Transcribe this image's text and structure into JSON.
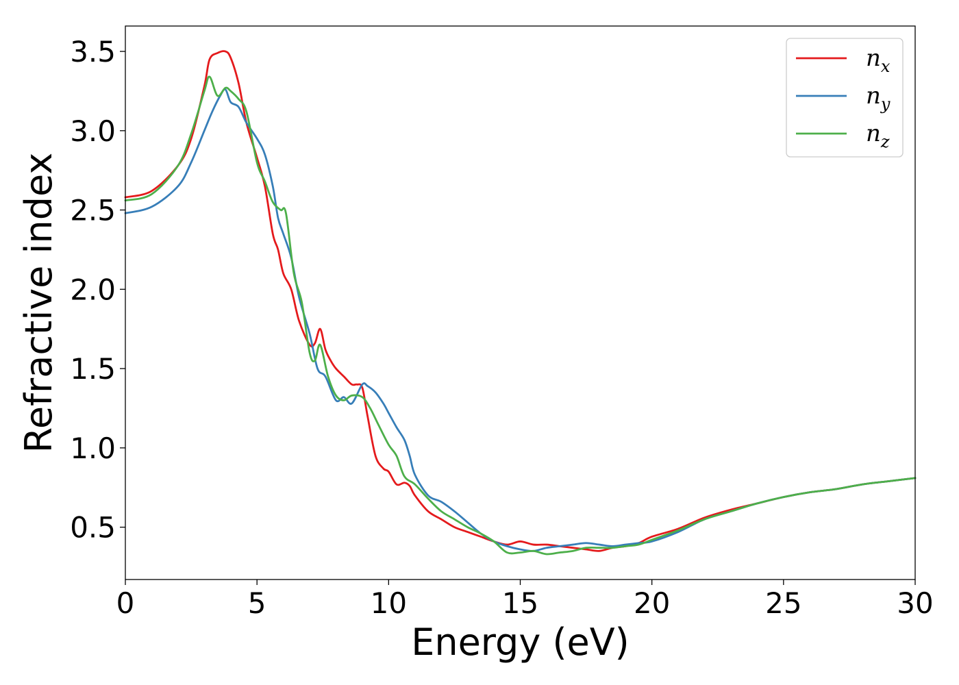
{
  "chart_data": {
    "type": "line",
    "xlabel": "Energy (eV)",
    "ylabel": "Refractive index",
    "xlim": [
      0,
      30
    ],
    "ylim": [
      0.17,
      3.66
    ],
    "xticks": [
      0,
      5,
      10,
      15,
      20,
      25,
      30
    ],
    "yticks": [
      0.5,
      1.0,
      1.5,
      2.0,
      2.5,
      3.0,
      3.5
    ],
    "xtick_labels": [
      "0",
      "5",
      "10",
      "15",
      "20",
      "25",
      "30"
    ],
    "ytick_labels": [
      "0.5",
      "1.0",
      "1.5",
      "2.0",
      "2.5",
      "3.0",
      "3.5"
    ],
    "grid": false,
    "legend_position": "top-right",
    "series": [
      {
        "name_main": "n",
        "name_sub": "x",
        "color": "#e41a1c",
        "x": [
          0,
          1,
          2,
          2.5,
          3,
          3.2,
          3.5,
          3.8,
          4.0,
          4.3,
          4.6,
          5.0,
          5.3,
          5.6,
          5.8,
          6.0,
          6.3,
          6.6,
          7.0,
          7.2,
          7.4,
          7.6,
          7.8,
          8.0,
          8.3,
          8.6,
          8.8,
          9.0,
          9.2,
          9.5,
          9.8,
          10.0,
          10.3,
          10.6,
          10.8,
          11.0,
          11.5,
          12.0,
          12.5,
          13.0,
          13.5,
          14.0,
          14.5,
          15.0,
          15.5,
          16.0,
          16.5,
          17.0,
          17.5,
          18.0,
          18.5,
          19.0,
          19.5,
          20.0,
          21.0,
          22.0,
          23.0,
          24.0,
          25.0,
          26.0,
          27.0,
          28.0,
          29.0,
          30.0
        ],
        "y": [
          2.58,
          2.62,
          2.78,
          2.95,
          3.28,
          3.45,
          3.49,
          3.5,
          3.46,
          3.3,
          3.05,
          2.83,
          2.65,
          2.35,
          2.25,
          2.1,
          2.0,
          1.8,
          1.65,
          1.66,
          1.75,
          1.62,
          1.55,
          1.5,
          1.45,
          1.4,
          1.4,
          1.38,
          1.2,
          0.95,
          0.87,
          0.85,
          0.77,
          0.78,
          0.76,
          0.7,
          0.6,
          0.55,
          0.5,
          0.47,
          0.44,
          0.41,
          0.39,
          0.41,
          0.39,
          0.39,
          0.38,
          0.37,
          0.36,
          0.35,
          0.37,
          0.38,
          0.4,
          0.44,
          0.49,
          0.56,
          0.61,
          0.65,
          0.69,
          0.72,
          0.74,
          0.77,
          0.79,
          0.81
        ]
      },
      {
        "name_main": "n",
        "name_sub": "y",
        "color": "#377eb8",
        "x": [
          0,
          1,
          2,
          2.5,
          3,
          3.3,
          3.6,
          3.8,
          4.0,
          4.3,
          4.6,
          5.0,
          5.3,
          5.6,
          5.8,
          6.0,
          6.3,
          6.6,
          7.0,
          7.3,
          7.6,
          8.0,
          8.3,
          8.6,
          9.0,
          9.2,
          9.5,
          9.8,
          10.0,
          10.3,
          10.6,
          10.8,
          11.0,
          11.5,
          12.0,
          12.5,
          13.0,
          13.5,
          14.0,
          14.5,
          15.0,
          15.5,
          16.0,
          16.5,
          17.0,
          17.5,
          18.0,
          18.5,
          19.0,
          19.5,
          20.0,
          21.0,
          22.0,
          23.0,
          24.0,
          25.0,
          26.0,
          27.0,
          28.0,
          29.0,
          30.0
        ],
        "y": [
          2.48,
          2.52,
          2.65,
          2.8,
          3.0,
          3.12,
          3.22,
          3.26,
          3.18,
          3.15,
          3.05,
          2.95,
          2.85,
          2.65,
          2.45,
          2.35,
          2.2,
          1.95,
          1.72,
          1.5,
          1.45,
          1.3,
          1.32,
          1.28,
          1.4,
          1.39,
          1.35,
          1.28,
          1.22,
          1.13,
          1.05,
          0.95,
          0.83,
          0.7,
          0.66,
          0.6,
          0.53,
          0.46,
          0.41,
          0.38,
          0.36,
          0.35,
          0.37,
          0.38,
          0.39,
          0.4,
          0.39,
          0.38,
          0.39,
          0.4,
          0.41,
          0.47,
          0.55,
          0.6,
          0.65,
          0.69,
          0.72,
          0.74,
          0.77,
          0.79,
          0.81
        ]
      },
      {
        "name_main": "n",
        "name_sub": "z",
        "color": "#4daf4a",
        "x": [
          0,
          1,
          2,
          2.5,
          3,
          3.2,
          3.5,
          3.8,
          4.0,
          4.3,
          4.6,
          5.0,
          5.3,
          5.6,
          5.9,
          6.1,
          6.4,
          6.7,
          7.0,
          7.2,
          7.4,
          7.7,
          8.0,
          8.3,
          8.6,
          9.0,
          9.3,
          9.6,
          10.0,
          10.3,
          10.6,
          11.0,
          11.5,
          12.0,
          12.5,
          13.0,
          13.5,
          14.0,
          14.5,
          15.0,
          15.5,
          16.0,
          16.5,
          17.0,
          17.5,
          18.0,
          18.5,
          19.0,
          19.5,
          20.0,
          21.0,
          22.0,
          23.0,
          24.0,
          25.0,
          26.0,
          27.0,
          28.0,
          29.0,
          30.0
        ],
        "y": [
          2.56,
          2.6,
          2.78,
          2.98,
          3.25,
          3.34,
          3.22,
          3.27,
          3.25,
          3.2,
          3.12,
          2.8,
          2.68,
          2.55,
          2.5,
          2.48,
          2.1,
          1.92,
          1.6,
          1.55,
          1.65,
          1.45,
          1.33,
          1.3,
          1.33,
          1.32,
          1.25,
          1.15,
          1.02,
          0.95,
          0.82,
          0.77,
          0.68,
          0.6,
          0.55,
          0.5,
          0.46,
          0.41,
          0.34,
          0.34,
          0.35,
          0.33,
          0.34,
          0.35,
          0.37,
          0.37,
          0.37,
          0.38,
          0.39,
          0.42,
          0.48,
          0.55,
          0.6,
          0.65,
          0.69,
          0.72,
          0.74,
          0.77,
          0.79,
          0.81
        ]
      }
    ]
  }
}
